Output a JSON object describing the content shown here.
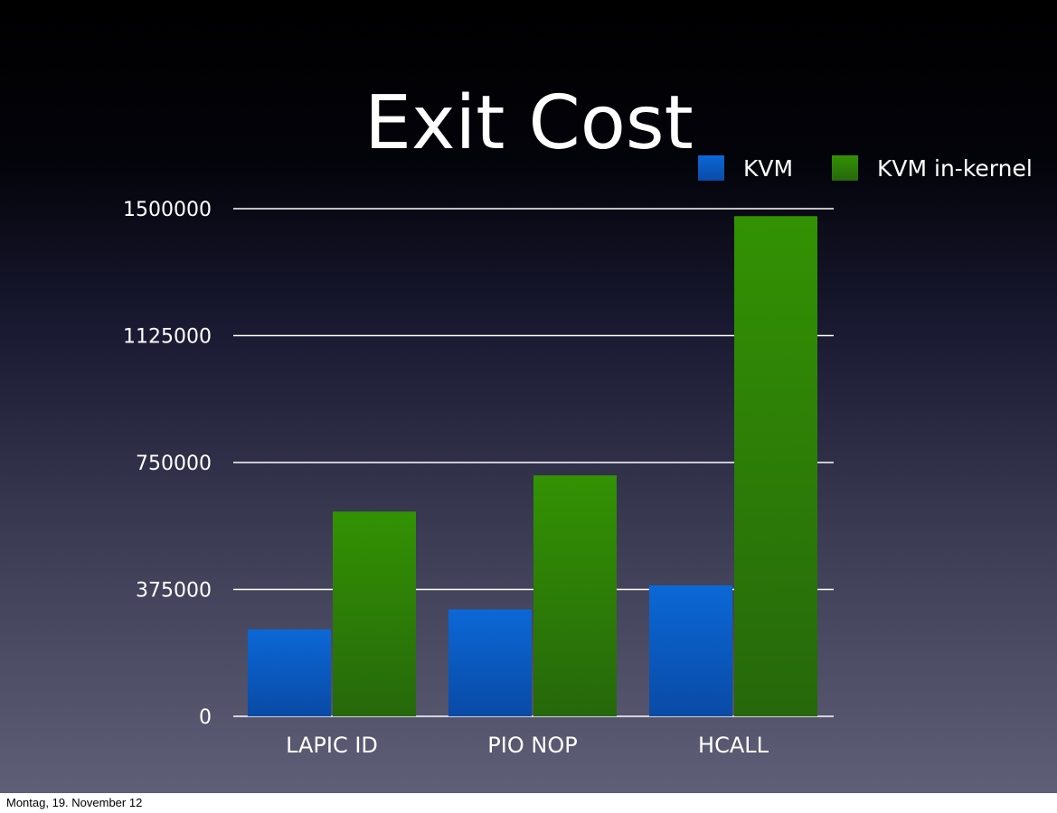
{
  "chart_data": {
    "type": "bar",
    "title": "Exit Cost",
    "categories": [
      "LAPIC ID",
      "PIO NOP",
      "HCALL"
    ],
    "series": [
      {
        "name": "KVM",
        "color": "#0a5fc6",
        "values": [
          257000,
          316000,
          387000
        ]
      },
      {
        "name": "KVM in-kernel",
        "color": "#2e8a07",
        "values": [
          605000,
          712000,
          1478000
        ]
      }
    ],
    "yticks": [
      0,
      375000,
      750000,
      1125000,
      1500000
    ],
    "ylim": [
      0,
      1500000
    ],
    "grid": true,
    "legend_position": "top-right"
  },
  "footer": {
    "text": "Montag, 19. November 12"
  }
}
